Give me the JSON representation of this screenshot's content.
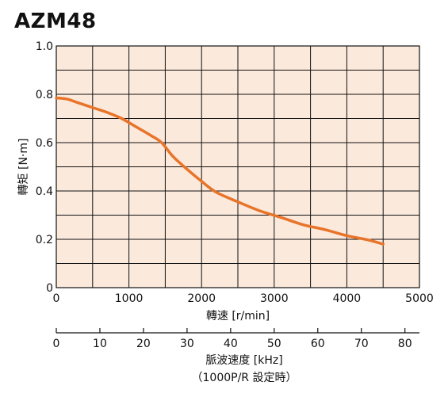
{
  "title": "AZM48",
  "chart_data": {
    "type": "line",
    "title": "AZM48",
    "xlabel": "轉速 [r/min]",
    "ylabel": "轉矩 [N·m]",
    "xlim": [
      0,
      5000
    ],
    "ylim": [
      0,
      1.0
    ],
    "x_ticks": [
      "0",
      "1000",
      "2000",
      "3000",
      "4000",
      "5000"
    ],
    "y_ticks": [
      "0",
      "0.2",
      "0.4",
      "0.6",
      "0.8",
      "1.0"
    ],
    "grid": true,
    "grid_x_step": 500,
    "grid_y_step": 0.1,
    "plot_background": "#fbe9dc",
    "line_color": "#e8742a",
    "secondary_axis": {
      "label_line1": "脈波速度 [kHz]",
      "label_line2": "（1000P/R 設定時）",
      "xlim": [
        0,
        83.33
      ],
      "ticks": [
        "0",
        "10",
        "20",
        "30",
        "40",
        "50",
        "60",
        "70",
        "80"
      ]
    },
    "series": [
      {
        "x": [
          0,
          150,
          300,
          500,
          700,
          900,
          1100,
          1300,
          1450,
          1600,
          1800,
          2000,
          2200,
          2500,
          2800,
          3100,
          3400,
          3700,
          4000,
          4300,
          4500
        ],
        "y": [
          0.785,
          0.78,
          0.765,
          0.745,
          0.725,
          0.7,
          0.665,
          0.63,
          0.6,
          0.545,
          0.49,
          0.44,
          0.395,
          0.355,
          0.318,
          0.29,
          0.26,
          0.24,
          0.215,
          0.197,
          0.18
        ]
      }
    ]
  }
}
